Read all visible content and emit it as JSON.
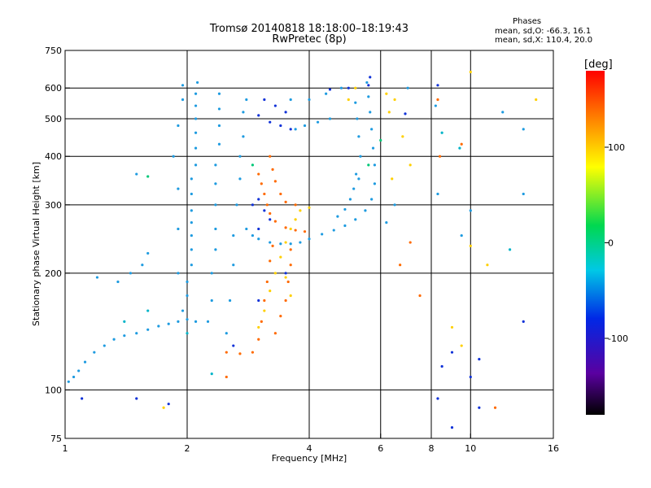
{
  "header": {
    "title_line1": "Tromsø 20140818 18:18:00–18:19:43",
    "title_line2": "RwPretec (8p)",
    "stats_heading": "Phases",
    "stats_o": "mean, sd,O: -66.3, 16.1",
    "stats_x": "mean, sd,X: 110.4, 20.0"
  },
  "chart_data": {
    "type": "scatter",
    "xlabel": "Frequency [MHz]",
    "ylabel": "Stationary phase Virtual Height [km]",
    "xscale": "log",
    "yscale": "log",
    "xlim": [
      1,
      16
    ],
    "ylim": [
      75,
      750
    ],
    "x_ticks": [
      1,
      2,
      4,
      6,
      8,
      10,
      16
    ],
    "x_tick_labels": [
      "1",
      "2",
      "4",
      "6",
      "8",
      "10",
      "16"
    ],
    "y_ticks": [
      75,
      100,
      200,
      300,
      400,
      500,
      600,
      750
    ],
    "y_tick_labels": [
      "75",
      "100",
      "200",
      "300",
      "400",
      "500",
      "600",
      "750"
    ],
    "x_gridlines": [
      2,
      4,
      6,
      8,
      10
    ],
    "y_gridlines": [
      100,
      200,
      300,
      400,
      500,
      600
    ],
    "grid": true,
    "colorbar": {
      "label": "[deg]",
      "range": [
        -180,
        180
      ],
      "ticks": [
        100,
        0,
        -100
      ],
      "tick_labels": [
        "100",
        "0",
        "-100"
      ],
      "colormap": "rainbow"
    },
    "series": [
      {
        "phase_deg": -40,
        "color": "#1e9be0",
        "points": [
          [
            1.02,
            105
          ],
          [
            1.05,
            108
          ],
          [
            1.08,
            112
          ],
          [
            1.12,
            118
          ],
          [
            1.18,
            125
          ],
          [
            1.25,
            130
          ],
          [
            1.32,
            135
          ],
          [
            1.4,
            138
          ],
          [
            1.5,
            140
          ],
          [
            1.6,
            143
          ],
          [
            1.7,
            146
          ],
          [
            1.8,
            148
          ],
          [
            1.9,
            150
          ],
          [
            2.0,
            152
          ],
          [
            2.1,
            150
          ],
          [
            1.95,
            160
          ],
          [
            2.0,
            175
          ],
          [
            2.0,
            190
          ],
          [
            2.05,
            210
          ],
          [
            2.05,
            230
          ],
          [
            2.05,
            250
          ],
          [
            2.05,
            270
          ],
          [
            2.05,
            290
          ],
          [
            2.05,
            320
          ],
          [
            2.05,
            350
          ],
          [
            2.1,
            380
          ],
          [
            2.1,
            420
          ],
          [
            2.1,
            460
          ],
          [
            2.1,
            500
          ],
          [
            2.1,
            540
          ],
          [
            2.1,
            580
          ],
          [
            2.12,
            620
          ],
          [
            1.9,
            200
          ],
          [
            1.9,
            260
          ],
          [
            1.9,
            330
          ],
          [
            1.85,
            400
          ],
          [
            1.9,
            480
          ],
          [
            1.95,
            560
          ],
          [
            1.95,
            610
          ],
          [
            2.25,
            150
          ],
          [
            2.3,
            170
          ],
          [
            2.3,
            200
          ],
          [
            2.35,
            230
          ],
          [
            2.35,
            260
          ],
          [
            2.35,
            300
          ],
          [
            2.35,
            340
          ],
          [
            2.35,
            380
          ],
          [
            2.4,
            430
          ],
          [
            2.4,
            480
          ],
          [
            2.4,
            530
          ],
          [
            2.4,
            580
          ],
          [
            2.5,
            140
          ],
          [
            2.55,
            170
          ],
          [
            2.6,
            210
          ],
          [
            2.6,
            250
          ],
          [
            2.65,
            300
          ],
          [
            2.7,
            350
          ],
          [
            2.7,
            400
          ],
          [
            2.75,
            450
          ],
          [
            2.75,
            520
          ],
          [
            2.8,
            560
          ],
          [
            1.2,
            195
          ],
          [
            1.35,
            190
          ],
          [
            1.45,
            200
          ],
          [
            1.55,
            210
          ],
          [
            1.6,
            225
          ],
          [
            1.5,
            360
          ],
          [
            2.8,
            260
          ],
          [
            2.9,
            250
          ],
          [
            3.0,
            245
          ],
          [
            3.2,
            240
          ],
          [
            3.4,
            238
          ],
          [
            3.6,
            238
          ],
          [
            3.8,
            240
          ],
          [
            4.0,
            245
          ],
          [
            4.3,
            252
          ],
          [
            4.6,
            258
          ],
          [
            4.9,
            265
          ],
          [
            5.2,
            275
          ],
          [
            5.5,
            290
          ],
          [
            5.7,
            310
          ],
          [
            5.8,
            340
          ],
          [
            5.8,
            380
          ],
          [
            5.75,
            420
          ],
          [
            5.7,
            470
          ],
          [
            5.65,
            520
          ],
          [
            5.6,
            570
          ],
          [
            5.55,
            620
          ],
          [
            5.3,
            350
          ],
          [
            5.35,
            400
          ],
          [
            5.3,
            450
          ],
          [
            5.25,
            500
          ],
          [
            5.2,
            550
          ],
          [
            4.7,
            280
          ],
          [
            4.9,
            292
          ],
          [
            5.05,
            310
          ],
          [
            5.15,
            330
          ],
          [
            5.22,
            360
          ],
          [
            3.6,
            560
          ],
          [
            4.0,
            560
          ],
          [
            4.4,
            580
          ],
          [
            4.8,
            600
          ],
          [
            3.7,
            470
          ],
          [
            3.9,
            480
          ],
          [
            4.2,
            490
          ],
          [
            4.5,
            500
          ],
          [
            6.2,
            270
          ],
          [
            6.5,
            300
          ],
          [
            7.0,
            600
          ],
          [
            8.2,
            540
          ],
          [
            8.3,
            320
          ],
          [
            9.5,
            250
          ],
          [
            10.0,
            290
          ],
          [
            12.0,
            520
          ],
          [
            13.5,
            470
          ],
          [
            13.5,
            320
          ]
        ]
      },
      {
        "phase_deg": -70,
        "color": "#1032d8",
        "points": [
          [
            2.9,
            300
          ],
          [
            3.0,
            310
          ],
          [
            3.1,
            290
          ],
          [
            3.2,
            275
          ],
          [
            3.0,
            510
          ],
          [
            3.2,
            490
          ],
          [
            3.4,
            480
          ],
          [
            3.6,
            470
          ],
          [
            3.1,
            560
          ],
          [
            3.3,
            540
          ],
          [
            3.5,
            520
          ],
          [
            4.5,
            595
          ],
          [
            5.0,
            600
          ],
          [
            5.6,
            610
          ],
          [
            5.65,
            640
          ],
          [
            3.0,
            260
          ],
          [
            3.5,
            200
          ],
          [
            3.0,
            170
          ],
          [
            2.6,
            130
          ],
          [
            1.5,
            95
          ],
          [
            1.1,
            95
          ],
          [
            1.8,
            92
          ],
          [
            8.3,
            95
          ],
          [
            9.0,
            80
          ],
          [
            8.5,
            115
          ],
          [
            9.0,
            125
          ],
          [
            13.5,
            150
          ],
          [
            8.3,
            610
          ],
          [
            10.5,
            90
          ],
          [
            10.0,
            108
          ],
          [
            6.9,
            515
          ],
          [
            10.5,
            120
          ]
        ]
      },
      {
        "phase_deg": 140,
        "color": "#ff6a00",
        "points": [
          [
            3.0,
            360
          ],
          [
            3.05,
            340
          ],
          [
            3.1,
            320
          ],
          [
            3.15,
            300
          ],
          [
            3.2,
            285
          ],
          [
            3.3,
            272
          ],
          [
            3.5,
            262
          ],
          [
            3.7,
            258
          ],
          [
            3.9,
            256
          ],
          [
            3.2,
            400
          ],
          [
            3.25,
            370
          ],
          [
            3.3,
            345
          ],
          [
            3.4,
            320
          ],
          [
            3.5,
            305
          ],
          [
            3.7,
            300
          ],
          [
            2.5,
            125
          ],
          [
            2.7,
            124
          ],
          [
            2.9,
            125
          ],
          [
            3.0,
            135
          ],
          [
            3.05,
            150
          ],
          [
            3.1,
            170
          ],
          [
            3.15,
            190
          ],
          [
            3.2,
            215
          ],
          [
            3.25,
            235
          ],
          [
            3.3,
            140
          ],
          [
            3.4,
            155
          ],
          [
            3.5,
            170
          ],
          [
            3.55,
            190
          ],
          [
            3.6,
            210
          ],
          [
            3.6,
            230
          ],
          [
            2.5,
            108
          ],
          [
            6.7,
            210
          ],
          [
            7.5,
            175
          ],
          [
            7.1,
            240
          ],
          [
            11.5,
            90
          ],
          [
            8.3,
            560
          ],
          [
            8.4,
            400
          ],
          [
            9.5,
            430
          ]
        ]
      },
      {
        "phase_deg": 100,
        "color": "#ffd000",
        "points": [
          [
            3.0,
            145
          ],
          [
            3.1,
            160
          ],
          [
            3.2,
            180
          ],
          [
            3.3,
            200
          ],
          [
            3.4,
            220
          ],
          [
            3.5,
            240
          ],
          [
            3.6,
            260
          ],
          [
            3.7,
            275
          ],
          [
            3.8,
            290
          ],
          [
            4.0,
            295
          ],
          [
            3.5,
            195
          ],
          [
            3.6,
            175
          ],
          [
            5.0,
            560
          ],
          [
            5.2,
            600
          ],
          [
            6.2,
            580
          ],
          [
            6.5,
            560
          ],
          [
            6.3,
            520
          ],
          [
            6.8,
            450
          ],
          [
            7.1,
            380
          ],
          [
            6.4,
            350
          ],
          [
            9.0,
            145
          ],
          [
            9.5,
            130
          ],
          [
            1.75,
            90
          ],
          [
            10.0,
            660
          ],
          [
            10.0,
            235
          ],
          [
            11.0,
            210
          ],
          [
            14.5,
            560
          ]
        ]
      },
      {
        "phase_deg": 10,
        "color": "#00c878",
        "points": [
          [
            2.9,
            380
          ],
          [
            1.6,
            355
          ],
          [
            6.0,
            440
          ],
          [
            5.6,
            380
          ]
        ]
      },
      {
        "phase_deg": -10,
        "color": "#00b4c8",
        "points": [
          [
            2.3,
            110
          ],
          [
            1.6,
            160
          ],
          [
            1.4,
            150
          ],
          [
            2.0,
            140
          ],
          [
            8.5,
            460
          ],
          [
            9.4,
            420
          ],
          [
            12.5,
            230
          ]
        ]
      }
    ]
  }
}
